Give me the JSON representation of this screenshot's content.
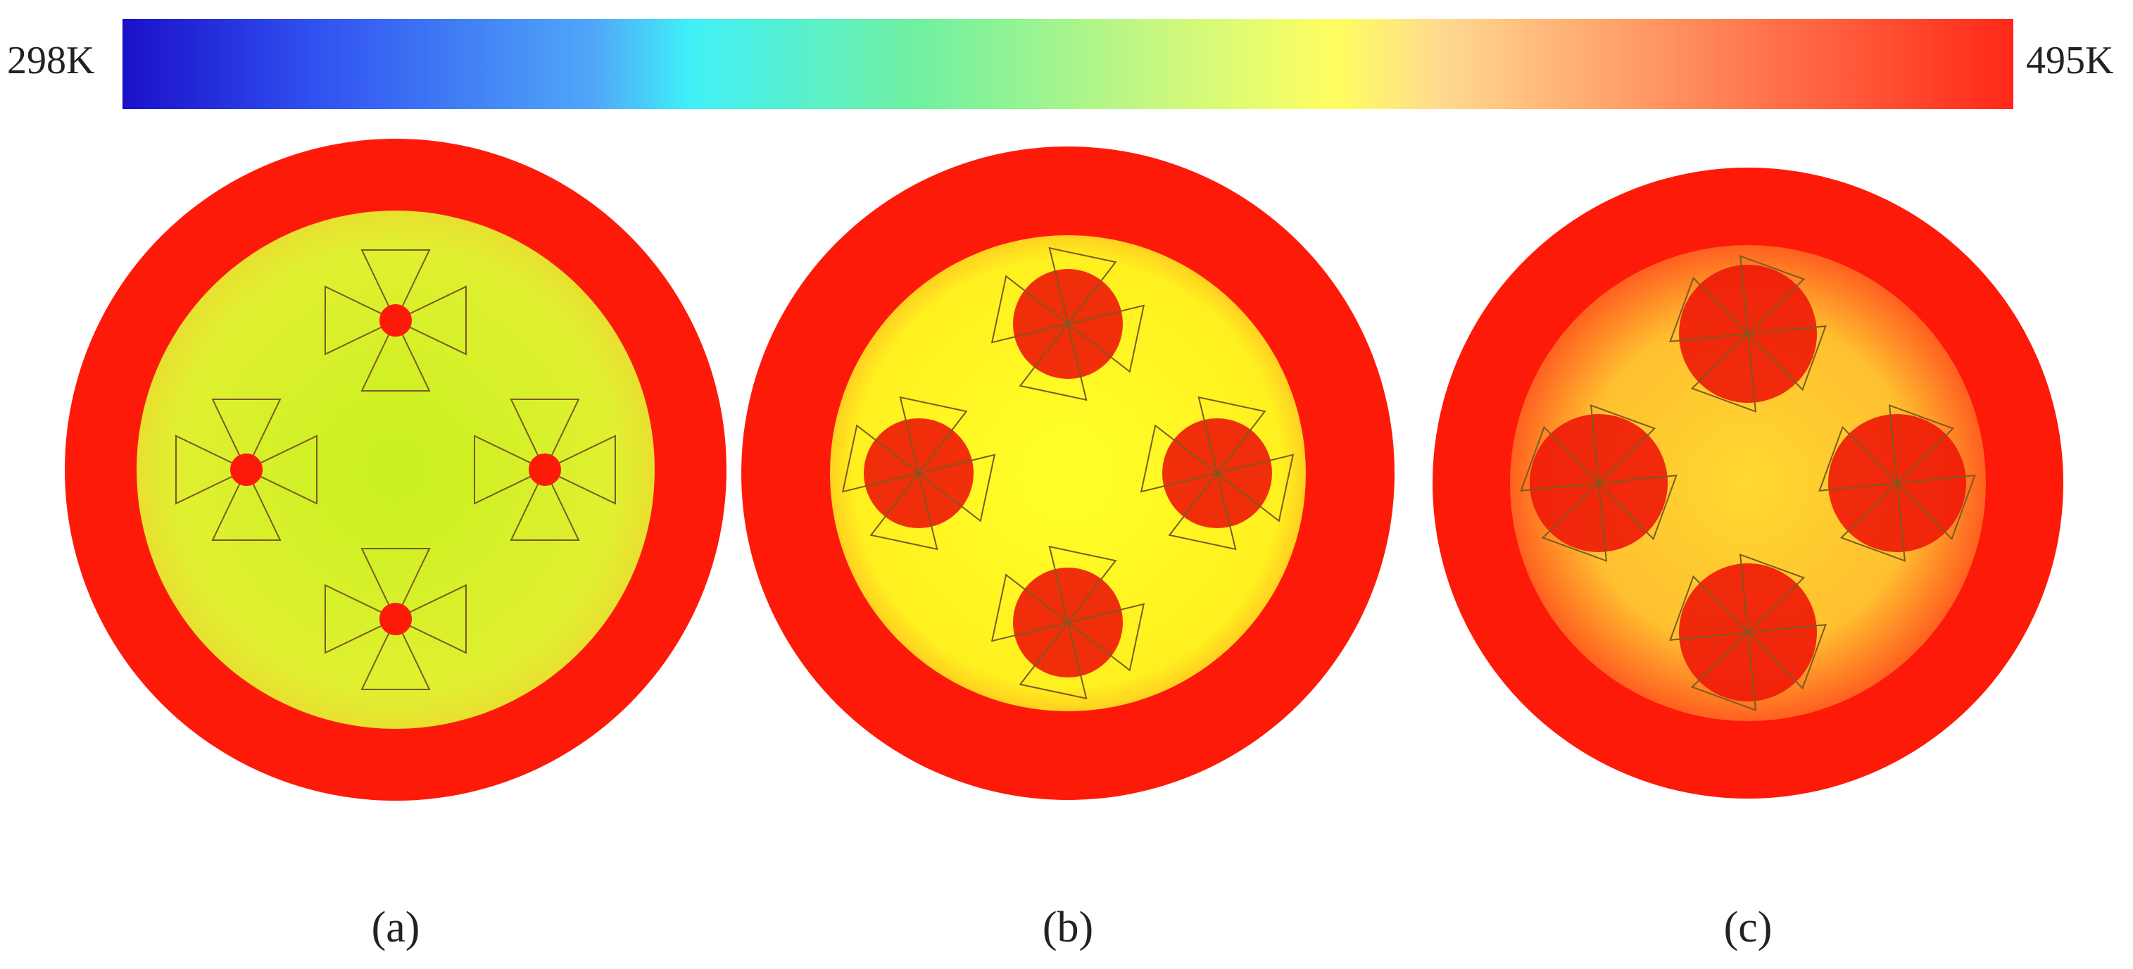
{
  "colorbar": {
    "min_label": "298K",
    "max_label": "495K"
  },
  "panels": [
    {
      "label": "(a)"
    },
    {
      "label": "(b)"
    },
    {
      "label": "(c)"
    }
  ]
}
